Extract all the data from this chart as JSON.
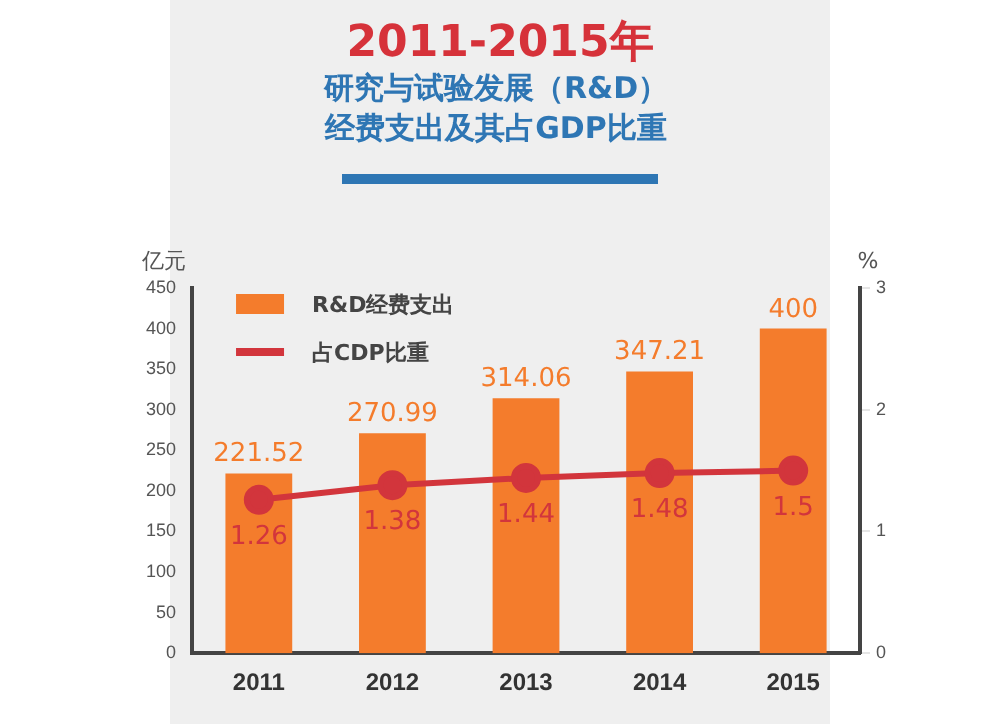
{
  "chart_data": {
    "type": "bar",
    "title": "2011-2015年",
    "subtitle": "研究与试验发展（R&D）经费支出及其占GDP比重",
    "ylabel": "亿元",
    "y2label": "%",
    "categories": [
      "2011",
      "2012",
      "2013",
      "2014",
      "2015"
    ],
    "series": [
      {
        "name": "R&D经费支出",
        "color": "#f47c2c",
        "values": [
          221.52,
          270.99,
          314.06,
          347.21,
          400
        ]
      },
      {
        "name": "占CDP比重",
        "type": "line",
        "axis": "y2",
        "color": "#d2353c",
        "values": [
          1.26,
          1.38,
          1.44,
          1.48,
          1.5
        ]
      }
    ],
    "ylim": [
      0,
      450
    ],
    "yticks": [
      0,
      50,
      100,
      150,
      200,
      250,
      300,
      350,
      400,
      450
    ],
    "y2lim": [
      0,
      3
    ],
    "y2ticks": [
      0,
      1,
      2,
      3
    ],
    "data_labels": true,
    "legend": "top left",
    "grid": false,
    "marker": "circle"
  }
}
